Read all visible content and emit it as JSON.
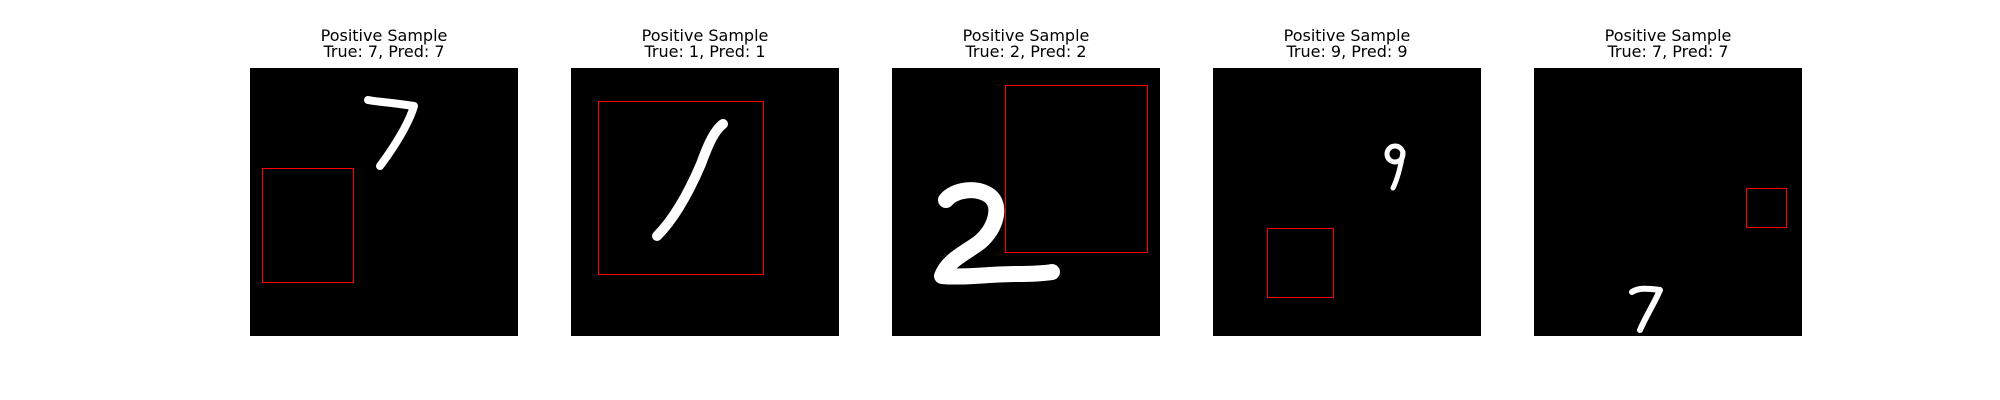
{
  "figure": {
    "panels": [
      {
        "title": "Positive Sample",
        "subtitle": "True: 7, Pred: 7",
        "digit": "7",
        "box_color": "#ff0000"
      },
      {
        "title": "Positive Sample",
        "subtitle": "True: 1, Pred: 1",
        "digit": "1",
        "box_color": "#ff0000"
      },
      {
        "title": "Positive Sample",
        "subtitle": "True: 2, Pred: 2",
        "digit": "2",
        "box_color": "#ff0000"
      },
      {
        "title": "Positive Sample",
        "subtitle": "True: 9, Pred: 9",
        "digit": "9",
        "box_color": "#ff0000"
      },
      {
        "title": "Positive Sample",
        "subtitle": "True: 7, Pred: 7",
        "digit": "7",
        "box_color": "#ff0000"
      }
    ]
  }
}
